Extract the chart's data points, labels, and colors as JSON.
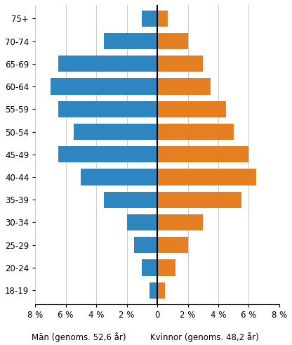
{
  "age_groups": [
    "18-19",
    "20-24",
    "25-29",
    "30-34",
    "35-39",
    "40-44",
    "45-49",
    "50-54",
    "55-59",
    "60-64",
    "65-69",
    "70-74",
    "75+"
  ],
  "men_values": [
    0.5,
    1.0,
    1.5,
    2.0,
    3.5,
    5.0,
    6.5,
    5.5,
    6.5,
    7.0,
    6.5,
    3.5,
    1.0
  ],
  "women_values": [
    0.5,
    1.2,
    2.0,
    3.0,
    5.5,
    6.5,
    6.0,
    5.0,
    4.5,
    3.5,
    3.0,
    2.0,
    0.7
  ],
  "men_color": "#2e86c1",
  "women_color": "#e67e22",
  "xlabel_men": "Män (genoms. 52,6 år)",
  "xlabel_women": "Kvinnor (genoms. 48,2 år)",
  "xlim": 8,
  "bar_height": 0.72,
  "background_color": "#ffffff",
  "grid_color": "#cccccc",
  "tick_labels": [
    "8 %",
    "6 %",
    "4 %",
    "2 %",
    "0",
    "2 %",
    "4 %",
    "6 %",
    "8 %"
  ],
  "tick_positions": [
    -8,
    -6,
    -4,
    -2,
    0,
    2,
    4,
    6,
    8
  ],
  "figsize": [
    4.16,
    4.91
  ],
  "dpi": 100
}
